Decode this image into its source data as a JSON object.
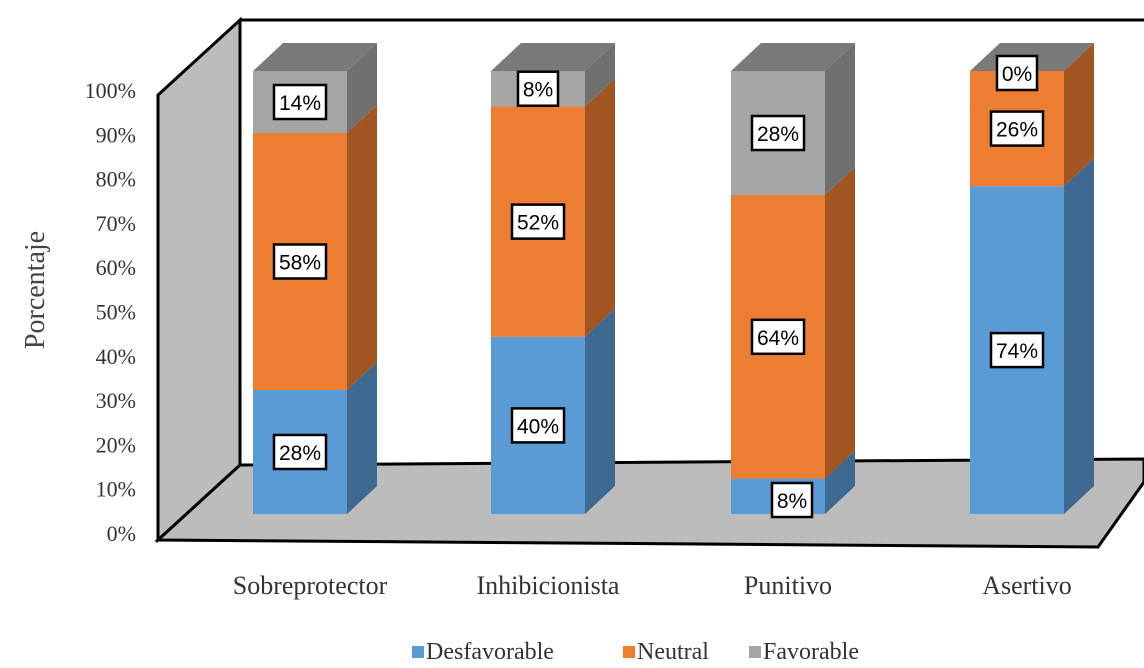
{
  "chart_data": {
    "type": "bar",
    "stacked": true,
    "percent_stacked": true,
    "three_d": true,
    "categories": [
      "Sobreprotector",
      "Inhibicionista",
      "Punitivo",
      "Asertivo"
    ],
    "series": [
      {
        "name": "Desfavorable",
        "values": [
          28,
          40,
          8,
          74
        ],
        "labels": [
          "28%",
          "40%",
          "8%",
          "74%"
        ],
        "color": "#5b9bd5"
      },
      {
        "name": "Neutral",
        "values": [
          58,
          52,
          64,
          26
        ],
        "labels": [
          "58%",
          "52%",
          "64%",
          "26%"
        ],
        "color": "#ed7d31"
      },
      {
        "name": "Favorable",
        "values": [
          14,
          8,
          28,
          0
        ],
        "labels": [
          "14%",
          "8%",
          "28%",
          "0%"
        ],
        "color": "#a5a5a5"
      }
    ],
    "ylabel": "Porcentaje",
    "xlabel": "",
    "ylim": [
      0,
      100
    ],
    "yticks": [
      "0%",
      "10%",
      "20%",
      "30%",
      "40%",
      "50%",
      "60%",
      "70%",
      "80%",
      "90%",
      "100%"
    ],
    "legend_position": "bottom",
    "grid": false
  }
}
